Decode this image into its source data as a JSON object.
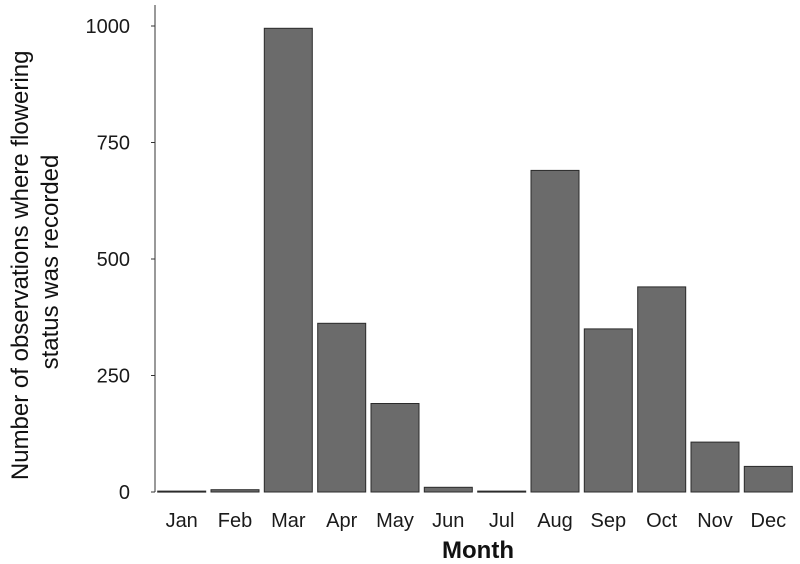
{
  "chart_data": {
    "type": "bar",
    "categories": [
      "Jan",
      "Feb",
      "Mar",
      "Apr",
      "May",
      "Jun",
      "Jul",
      "Aug",
      "Sep",
      "Oct",
      "Nov",
      "Dec"
    ],
    "values": [
      2,
      5,
      995,
      362,
      190,
      10,
      2,
      690,
      350,
      440,
      107,
      55
    ],
    "xlabel": "Month",
    "ylabel_lines": [
      "Number of observations where flowering",
      "status was recorded"
    ],
    "ylim": [
      0,
      1045
    ],
    "yticks": [
      0,
      250,
      500,
      750,
      1000
    ],
    "grid": false,
    "bar_color": "#6b6b6b",
    "bar_edge_color": "#2b2b2b",
    "axis_color": "#333333"
  }
}
